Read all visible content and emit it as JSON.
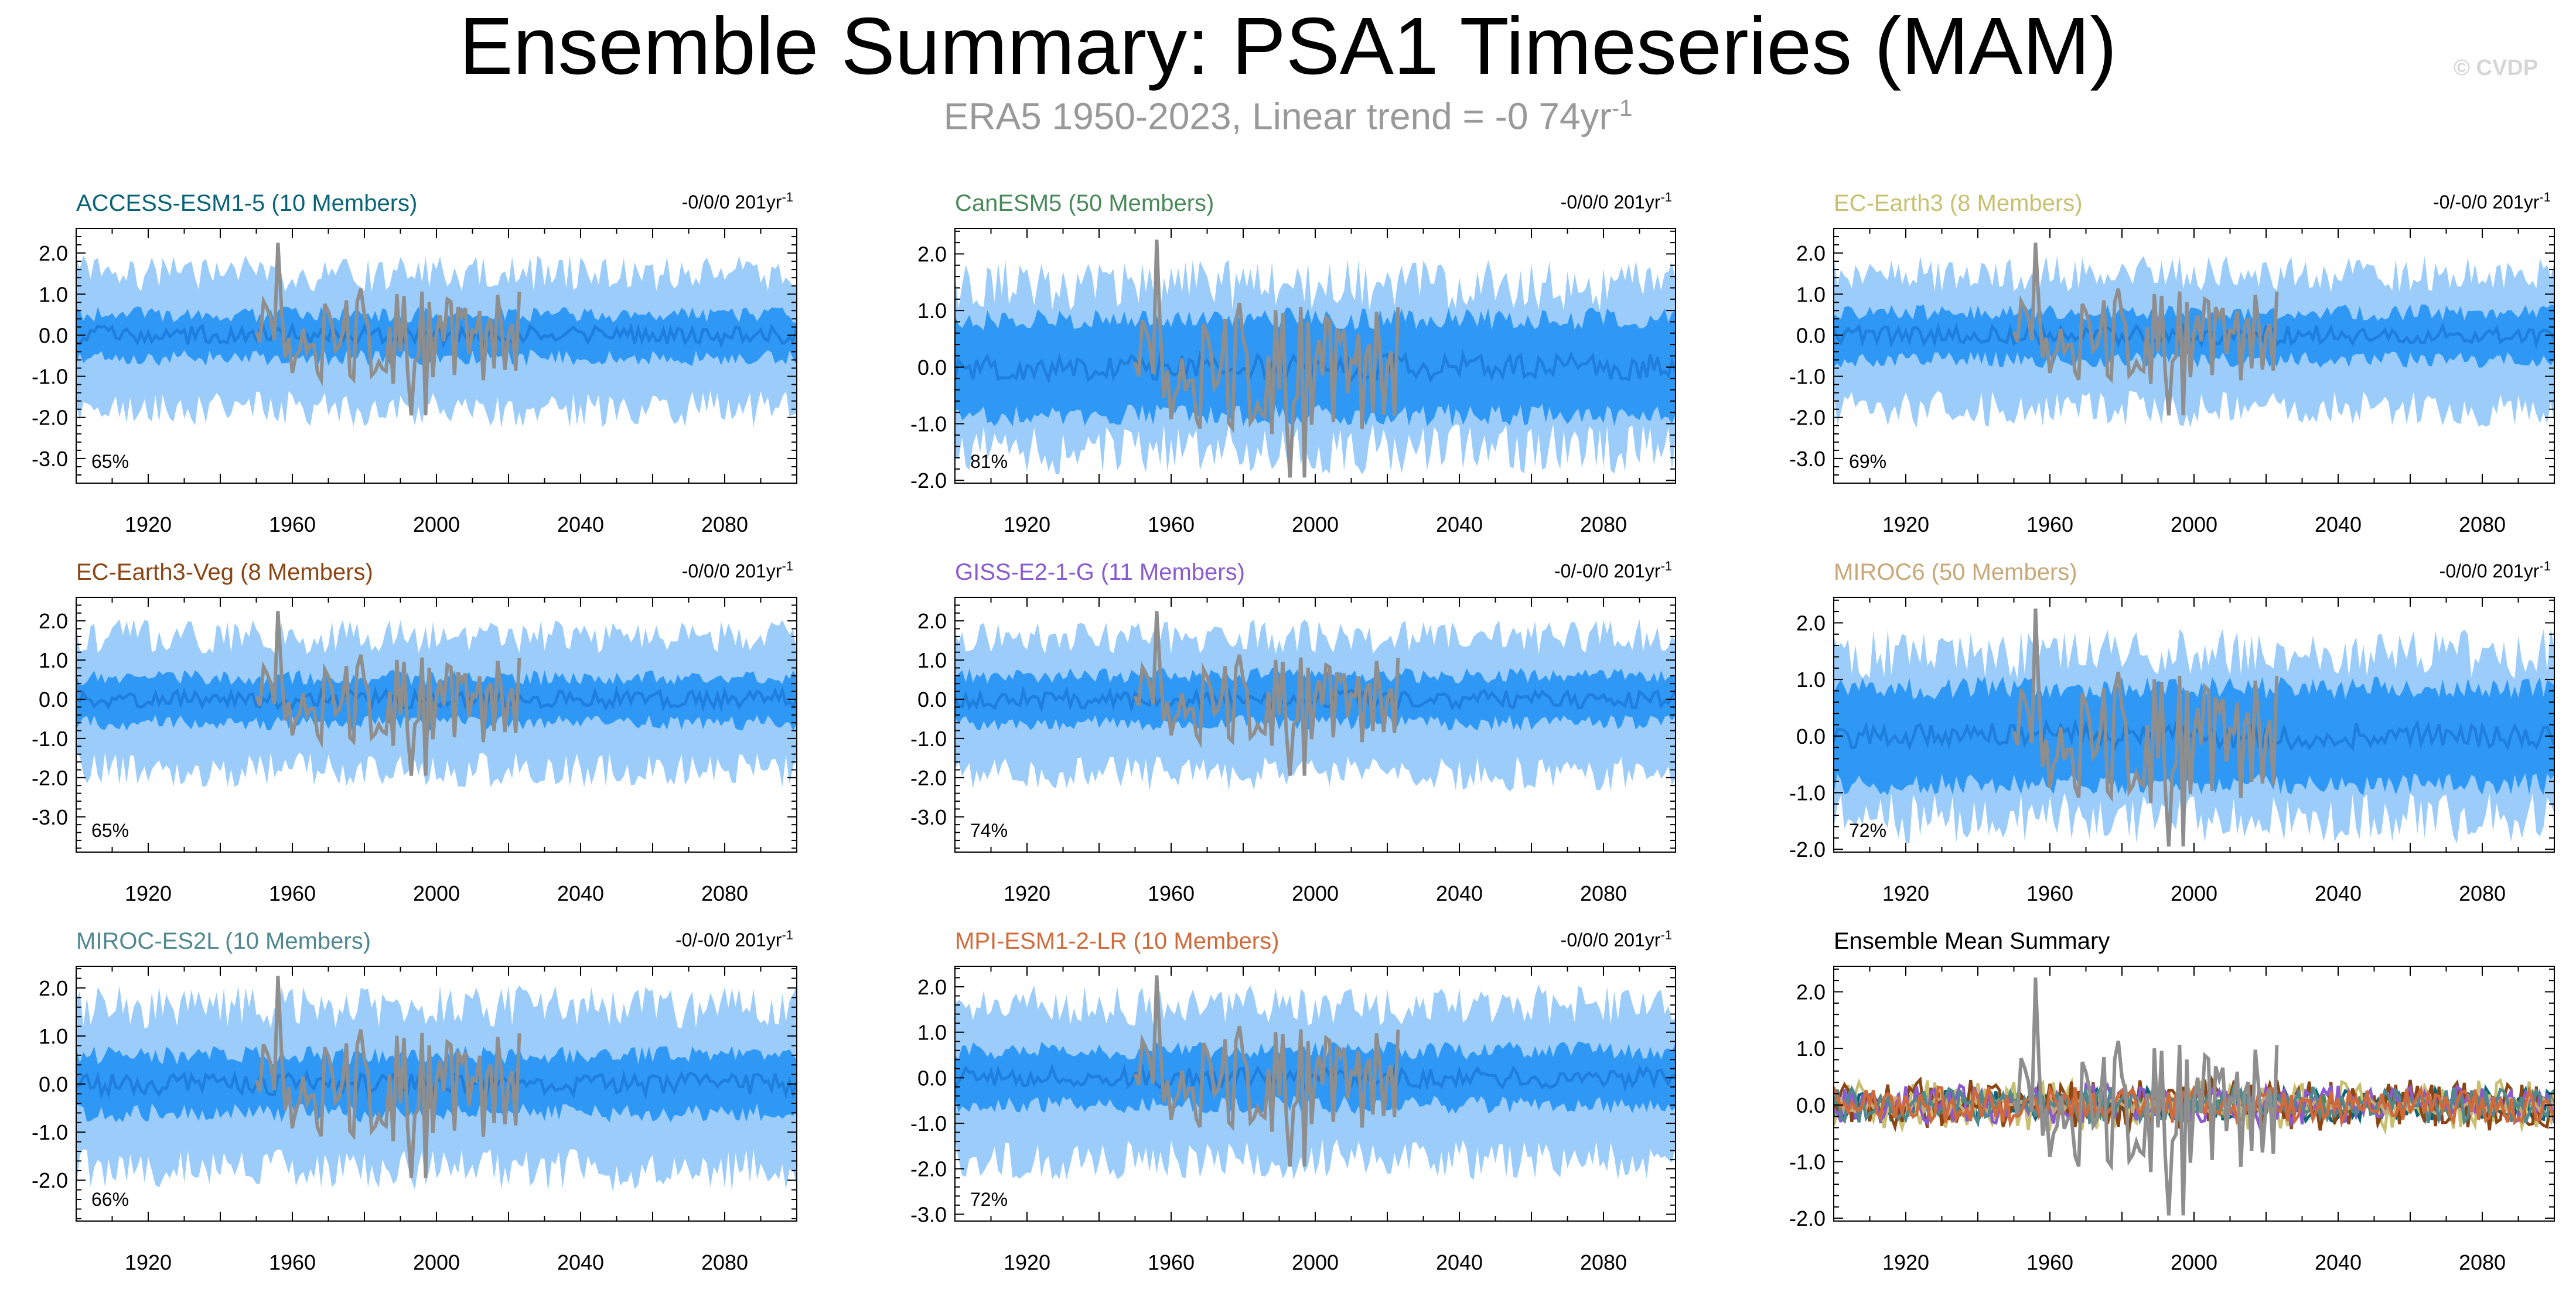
{
  "page": {
    "title": "Ensemble Summary: PSA1 Timeseries (MAM)",
    "subtitle": "ERA5 1950-2023, Linear trend = -0 74yr",
    "subtitle_sup": "-1",
    "watermark": "© CVDP"
  },
  "colors": {
    "band_outer": "#9ccdfa",
    "band_inner": "#2f98f5",
    "ens_mean": "#1f7fdc",
    "obs": "#8e8e8e"
  },
  "chart_data": [
    {
      "type": "area",
      "name": "ACCESS-ESM1-5",
      "title": "ACCESS-ESM1-5 (10 Members)",
      "title_color": "#0a6478",
      "trend": "-0/0/0 201yr",
      "trend_sup": "-1",
      "percent": "65%",
      "xlim": [
        1900,
        2100
      ],
      "ylim": [
        -3.6,
        2.6
      ],
      "yticks": [
        2,
        1,
        0,
        -1,
        -2,
        -3
      ],
      "ytick_labels": [
        "2.0",
        "1.0",
        "0.0",
        "-1.0",
        "-2.0",
        "-3.0"
      ],
      "xticks": [
        1920,
        1960,
        2000,
        2040,
        2080
      ],
      "xtick_labels": [
        "1920",
        "1960",
        "2000",
        "2040",
        "2080"
      ],
      "outer": [
        -1.8,
        1.5
      ],
      "inner": [
        -0.55,
        0.5
      ],
      "obs_range": [
        1950,
        2023
      ],
      "seed": 11
    },
    {
      "type": "area",
      "name": "CanESM5",
      "title": "CanESM5 (50 Members)",
      "title_color": "#4a8a5a",
      "trend": "-0/0/0 201yr",
      "trend_sup": "-1",
      "percent": "81%",
      "xlim": [
        1900,
        2100
      ],
      "ylim": [
        -2.05,
        2.45
      ],
      "yticks": [
        2,
        1,
        0,
        -1,
        -2
      ],
      "ytick_labels": [
        "2.0",
        "1.0",
        "0.0",
        "-1.0",
        "-2.0"
      ],
      "xticks": [
        1920,
        1960,
        2000,
        2040,
        2080
      ],
      "xtick_labels": [
        "1920",
        "1960",
        "2000",
        "2040",
        "2080"
      ],
      "outer": [
        -1.45,
        1.45
      ],
      "inner": [
        -0.85,
        0.85
      ],
      "obs_range": [
        1950,
        2023
      ],
      "seed": 23
    },
    {
      "type": "area",
      "name": "EC-Earth3",
      "title": "EC-Earth3 (8 Members)",
      "title_color": "#c8c070",
      "trend": "-0/-0/0 201yr",
      "trend_sup": "-1",
      "percent": "69%",
      "xlim": [
        1900,
        2100
      ],
      "ylim": [
        -3.6,
        2.6
      ],
      "yticks": [
        2,
        1,
        0,
        -1,
        -2,
        -3
      ],
      "ytick_labels": [
        "2.0",
        "1.0",
        "0.0",
        "-1.0",
        "-2.0",
        "-3.0"
      ],
      "xticks": [
        1920,
        1960,
        2000,
        2040,
        2080
      ],
      "xtick_labels": [
        "1920",
        "1960",
        "2000",
        "2040",
        "2080"
      ],
      "outer": [
        -1.8,
        1.5
      ],
      "inner": [
        -0.6,
        0.55
      ],
      "obs_range": [
        1950,
        2023
      ],
      "seed": 37
    },
    {
      "type": "area",
      "name": "EC-Earth3-Veg",
      "title": "EC-Earth3-Veg (8 Members)",
      "title_color": "#8b4513",
      "trend": "-0/0/0 201yr",
      "trend_sup": "-1",
      "percent": "65%",
      "xlim": [
        1900,
        2100
      ],
      "ylim": [
        -3.9,
        2.6
      ],
      "yticks": [
        2,
        1,
        0,
        -1,
        -2,
        -3
      ],
      "ytick_labels": [
        "2.0",
        "1.0",
        "0.0",
        "-1.0",
        "-2.0",
        "-3.0"
      ],
      "xticks": [
        1920,
        1960,
        2000,
        2040,
        2080
      ],
      "xtick_labels": [
        "1920",
        "1960",
        "2000",
        "2040",
        "2080"
      ],
      "outer": [
        -1.8,
        1.6
      ],
      "inner": [
        -0.6,
        0.55
      ],
      "obs_range": [
        1950,
        2023
      ],
      "seed": 41
    },
    {
      "type": "area",
      "name": "GISS-E2-1-G",
      "title": "GISS-E2-1-G (11 Members)",
      "title_color": "#8a5ad0",
      "trend": "-0/-0/0 201yr",
      "trend_sup": "-1",
      "percent": "74%",
      "xlim": [
        1900,
        2100
      ],
      "ylim": [
        -3.9,
        2.6
      ],
      "yticks": [
        2,
        1,
        0,
        -1,
        -2,
        -3
      ],
      "ytick_labels": [
        "2.0",
        "1.0",
        "0.0",
        "-1.0",
        "-2.0",
        "-3.0"
      ],
      "xticks": [
        1920,
        1960,
        2000,
        2040,
        2080
      ],
      "xtick_labels": [
        "1920",
        "1960",
        "2000",
        "2040",
        "2080"
      ],
      "outer": [
        -1.9,
        1.6
      ],
      "inner": [
        -0.6,
        0.6
      ],
      "obs_range": [
        1950,
        2023
      ],
      "seed": 53
    },
    {
      "type": "area",
      "name": "MIROC6",
      "title": "MIROC6 (50 Members)",
      "title_color": "#c8a878",
      "trend": "-0/0/0 201yr",
      "trend_sup": "-1",
      "percent": "72%",
      "xlim": [
        1900,
        2100
      ],
      "ylim": [
        -2.05,
        2.45
      ],
      "yticks": [
        2,
        1,
        0,
        -1,
        -2
      ],
      "ytick_labels": [
        "2.0",
        "1.0",
        "0.0",
        "-1.0",
        "-2.0"
      ],
      "xticks": [
        1920,
        1960,
        2000,
        2040,
        2080
      ],
      "xtick_labels": [
        "1920",
        "1960",
        "2000",
        "2040",
        "2080"
      ],
      "outer": [
        -1.45,
        1.45
      ],
      "inner": [
        -0.85,
        0.85
      ],
      "obs_range": [
        1950,
        2023
      ],
      "seed": 67
    },
    {
      "type": "area",
      "name": "MIROC-ES2L",
      "title": "MIROC-ES2L (10 Members)",
      "title_color": "#508890",
      "trend": "-0/-0/0 201yr",
      "trend_sup": "-1",
      "percent": "66%",
      "xlim": [
        1900,
        2100
      ],
      "ylim": [
        -2.85,
        2.45
      ],
      "yticks": [
        2,
        1,
        0,
        -1,
        -2
      ],
      "ytick_labels": [
        "2.0",
        "1.0",
        "0.0",
        "-1.0",
        "-2.0"
      ],
      "xticks": [
        1920,
        1960,
        2000,
        2040,
        2080
      ],
      "xtick_labels": [
        "1920",
        "1960",
        "2000",
        "2040",
        "2080"
      ],
      "outer": [
        -1.8,
        1.6
      ],
      "inner": [
        -0.6,
        0.6
      ],
      "obs_range": [
        1950,
        2023
      ],
      "seed": 79
    },
    {
      "type": "area",
      "name": "MPI-ESM1-2-LR",
      "title": "MPI-ESM1-2-LR (10 Members)",
      "title_color": "#d06a3a",
      "trend": "-0/0/0 201yr",
      "trend_sup": "-1",
      "percent": "72%",
      "xlim": [
        1900,
        2100
      ],
      "ylim": [
        -3.15,
        2.45
      ],
      "yticks": [
        2,
        1,
        0,
        -1,
        -2,
        -3
      ],
      "ytick_labels": [
        "2.0",
        "1.0",
        "0.0",
        "-1.0",
        "-2.0",
        "-3.0"
      ],
      "xticks": [
        1920,
        1960,
        2000,
        2040,
        2080
      ],
      "xtick_labels": [
        "1920",
        "1960",
        "2000",
        "2040",
        "2080"
      ],
      "outer": [
        -1.8,
        1.6
      ],
      "inner": [
        -0.6,
        0.6
      ],
      "obs_range": [
        1950,
        2023
      ],
      "seed": 83
    },
    {
      "type": "line",
      "name": "Ensemble Mean Summary",
      "title": "Ensemble Mean Summary",
      "title_color": "#000000",
      "trend": "",
      "trend_sup": "",
      "percent": "",
      "xlim": [
        1900,
        2100
      ],
      "ylim": [
        -2.05,
        2.45
      ],
      "yticks": [
        2,
        1,
        0,
        -1,
        -2
      ],
      "ytick_labels": [
        "2.0",
        "1.0",
        "0.0",
        "-1.0",
        "-2.0"
      ],
      "xticks": [
        1920,
        1960,
        2000,
        2040,
        2080
      ],
      "xtick_labels": [
        "1920",
        "1960",
        "2000",
        "2040",
        "2080"
      ],
      "obs_range": [
        1950,
        2023
      ],
      "series": [
        {
          "name": "ACCESS-ESM1-5",
          "color": "#0a6478",
          "amp": 0.3,
          "seed": 101
        },
        {
          "name": "CanESM5",
          "color": "#4a8a5a",
          "amp": 0.22,
          "seed": 103
        },
        {
          "name": "EC-Earth3",
          "color": "#c8c070",
          "amp": 0.45,
          "seed": 107
        },
        {
          "name": "EC-Earth3-Veg",
          "color": "#8b4513",
          "amp": 0.45,
          "seed": 109
        },
        {
          "name": "GISS-E2-1-G",
          "color": "#8a5ad0",
          "amp": 0.35,
          "seed": 113
        },
        {
          "name": "MIROC6",
          "color": "#c8a878",
          "amp": 0.15,
          "seed": 127
        },
        {
          "name": "MIROC-ES2L",
          "color": "#508890",
          "amp": 0.32,
          "seed": 131
        },
        {
          "name": "MPI-ESM1-2-LR",
          "color": "#d06a3a",
          "amp": 0.32,
          "seed": 137
        }
      ]
    }
  ]
}
